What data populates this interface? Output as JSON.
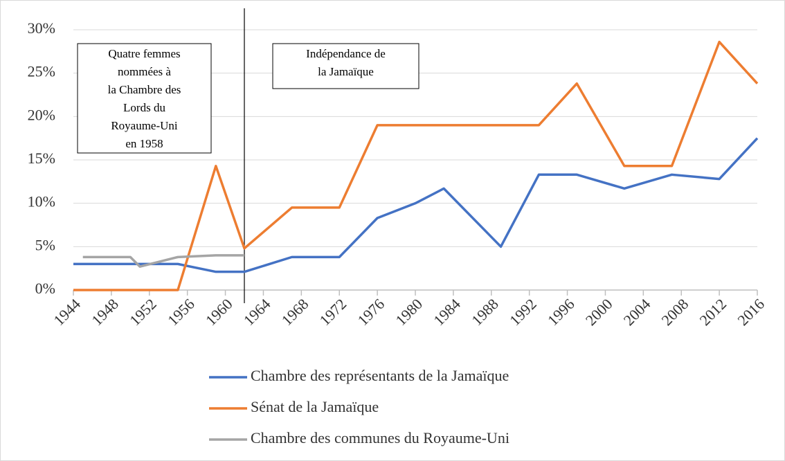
{
  "chart_data": {
    "type": "line",
    "xlim": [
      1944,
      2016
    ],
    "xticks": [
      1944,
      1948,
      1952,
      1956,
      1960,
      1964,
      1968,
      1972,
      1976,
      1980,
      1984,
      1988,
      1992,
      1996,
      2000,
      2004,
      2008,
      2012,
      2016
    ],
    "ylim": [
      0,
      30
    ],
    "yticks": [
      {
        "value": 0,
        "label": "0%"
      },
      {
        "value": 5,
        "label": "5%"
      },
      {
        "value": 10,
        "label": "10%"
      },
      {
        "value": 15,
        "label": "15%"
      },
      {
        "value": 20,
        "label": "20%"
      },
      {
        "value": 25,
        "label": "25%"
      },
      {
        "value": 30,
        "label": "30%"
      }
    ],
    "grid": true,
    "vline": 1962,
    "annotations": [
      {
        "lines": [
          "Quatre femmes",
          "nommées à",
          "la Chambre des",
          "Lords du",
          "Royaume-Uni",
          "en 1958"
        ]
      },
      {
        "lines": [
          "Indépendance de",
          "la Jamaïque"
        ]
      }
    ],
    "legend": "bottom",
    "series": [
      {
        "name": "Chambre des représentants de la Jamaïque",
        "color": "#4472c4",
        "x": [
          1944,
          1955,
          1959,
          1962,
          1967,
          1972,
          1976,
          1980,
          1983,
          1989,
          1993,
          1997,
          2002,
          2007,
          2012,
          2016
        ],
        "values": [
          3,
          3,
          2.1,
          2.1,
          3.8,
          3.8,
          8.3,
          10,
          11.7,
          5,
          13.3,
          13.3,
          11.7,
          13.3,
          12.8,
          17.5
        ]
      },
      {
        "name": "Sénat de la Jamaïque",
        "color": "#ed7d31",
        "x": [
          1944,
          1955,
          1959,
          1962,
          1967,
          1972,
          1976,
          1980,
          1983,
          1989,
          1993,
          1997,
          2002,
          2007,
          2012,
          2016
        ],
        "values": [
          0,
          0,
          14.3,
          4.8,
          9.5,
          9.5,
          19,
          19,
          19,
          19,
          19,
          23.8,
          14.3,
          14.3,
          28.6,
          23.8
        ]
      },
      {
        "name": "Chambre des communes du Royaume-Uni",
        "color": "#a5a5a5",
        "x": [
          1945,
          1950,
          1951,
          1955,
          1959,
          1962
        ],
        "values": [
          3.8,
          3.8,
          2.7,
          3.8,
          4.0,
          4.0
        ]
      }
    ]
  }
}
